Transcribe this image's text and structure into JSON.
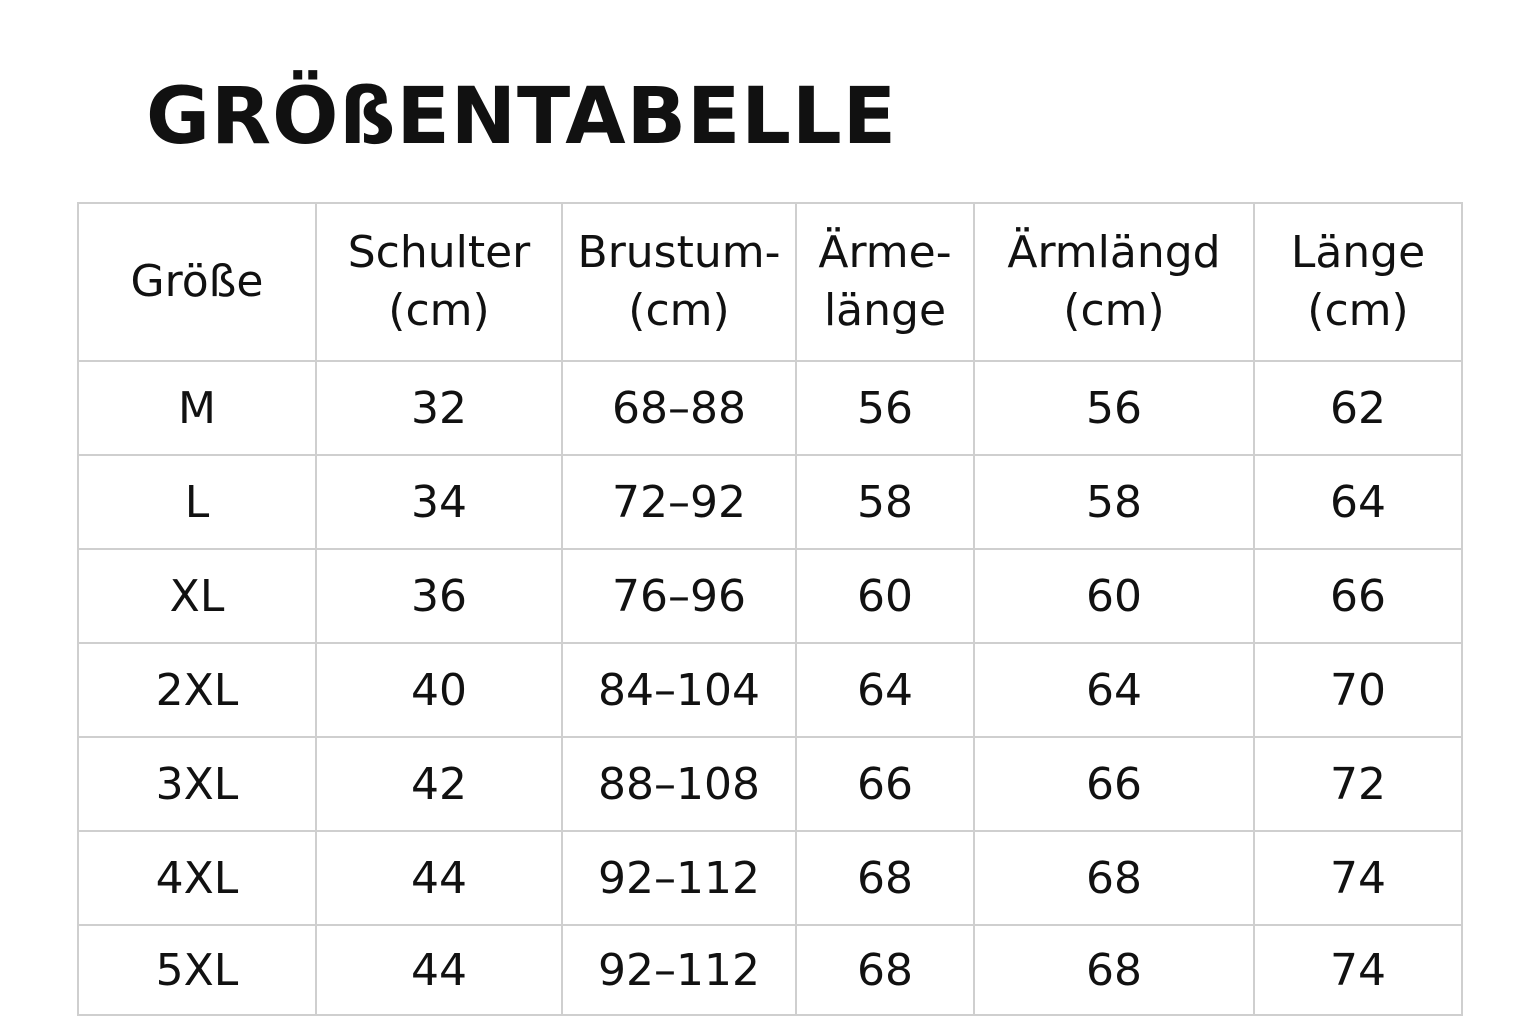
{
  "title": "GRÖßENTABELLE",
  "table": {
    "headers": [
      [
        "Größe"
      ],
      [
        "Schulter",
        "(cm)"
      ],
      [
        "Brustum-",
        "(cm)"
      ],
      [
        "Ärme-",
        "länge"
      ],
      [
        "Ärmlängd",
        "(cm)"
      ],
      [
        "Länge",
        "(cm)"
      ]
    ],
    "rows": [
      [
        "M",
        "32",
        "68–88",
        "56",
        "56",
        "62"
      ],
      [
        "L",
        "34",
        "72–92",
        "58",
        "58",
        "64"
      ],
      [
        "XL",
        "36",
        "76–96",
        "60",
        "60",
        "66"
      ],
      [
        "2XL",
        "40",
        "84–104",
        "64",
        "64",
        "70"
      ],
      [
        "3XL",
        "42",
        "88–108",
        "66",
        "66",
        "72"
      ],
      [
        "4XL",
        "44",
        "92–112",
        "68",
        "68",
        "74"
      ],
      [
        "5XL",
        "44",
        "92–112",
        "68",
        "68",
        "74"
      ]
    ]
  }
}
